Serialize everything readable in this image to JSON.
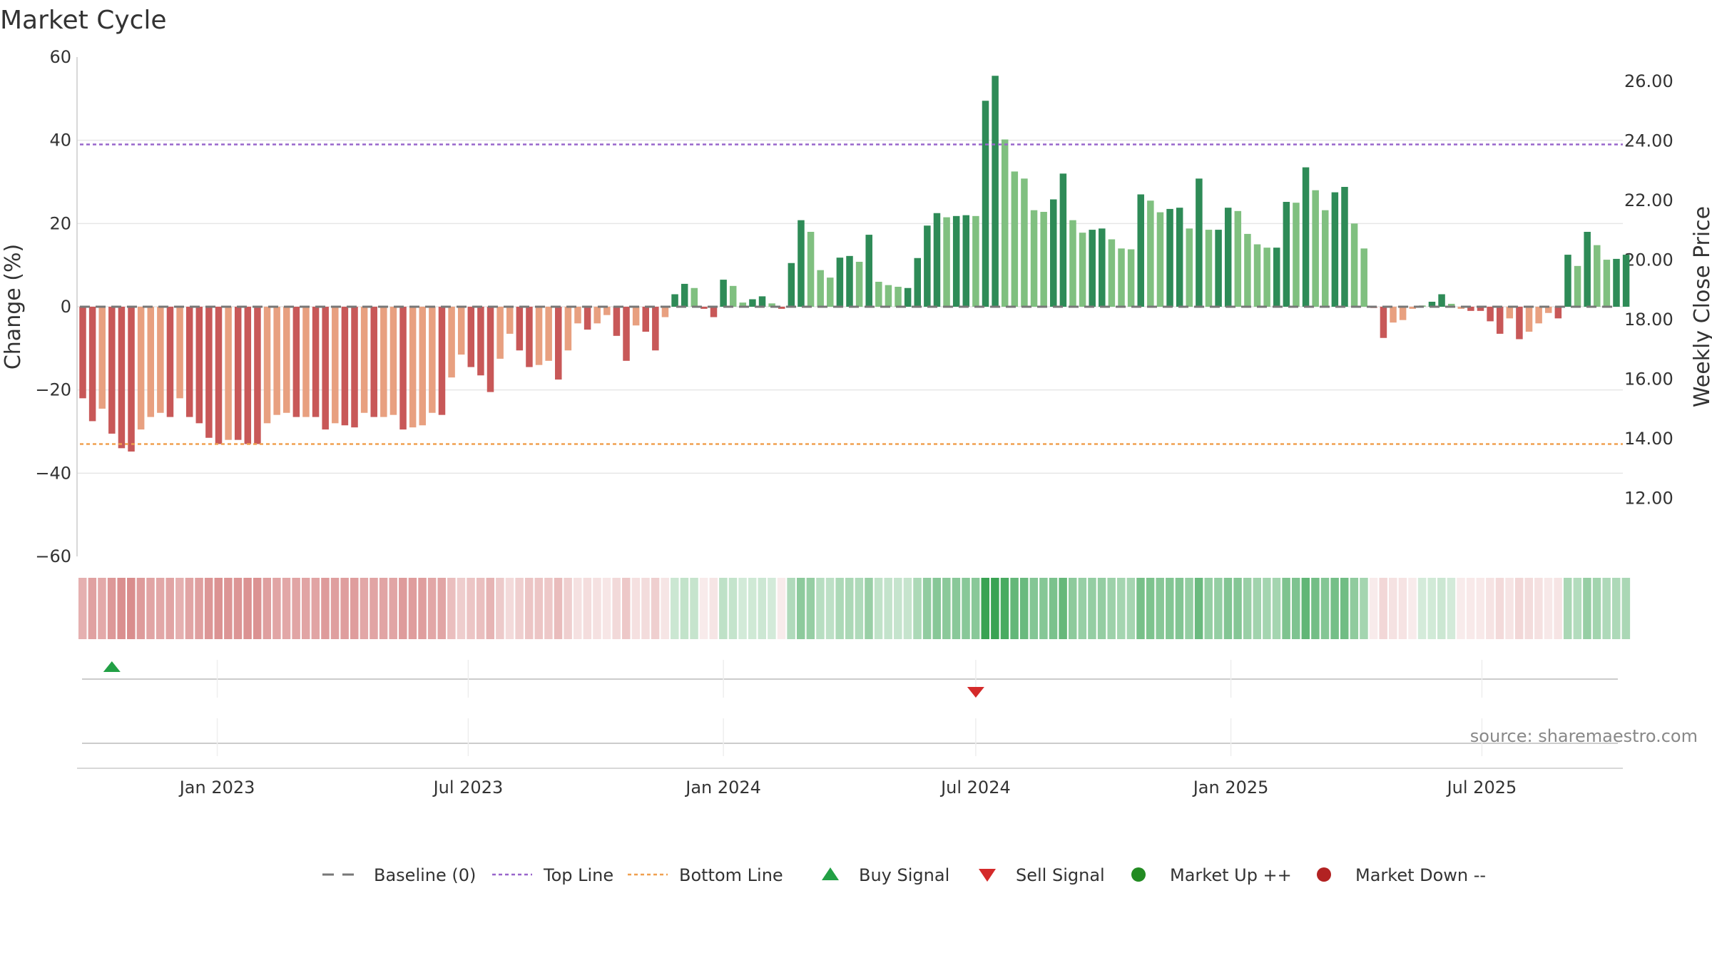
{
  "chart_data": {
    "type": "bar",
    "title": "Market Cycle",
    "ylabel": "Change (%)",
    "y2label": "Weekly Close Price",
    "ylim": [
      -60,
      60
    ],
    "y_ticks": [
      "60",
      "40",
      "20",
      "0",
      "−20",
      "−40",
      "−60"
    ],
    "y_tick_values": [
      60,
      40,
      20,
      0,
      -20,
      -40,
      -60
    ],
    "y2lim": [
      10,
      27
    ],
    "y2_ticks": [
      "26.00",
      "24.00",
      "22.00",
      "20.00",
      "18.00",
      "16.00",
      "14.00",
      "12.00"
    ],
    "y2_tick_values": [
      26,
      24,
      22,
      20,
      18,
      16,
      14,
      12
    ],
    "top_line": 39,
    "bottom_line": -33,
    "x_start": "2022-09-26",
    "x_end": "2025-10-06",
    "x_ticks": [
      "Jan 2023",
      "Jul 2023",
      "Jan 2024",
      "Jul 2024",
      "Jan 2025",
      "Jul 2025"
    ],
    "x_tick_dates": [
      "2023-01-01",
      "2023-07-01",
      "2024-01-01",
      "2024-07-01",
      "2025-01-01",
      "2025-07-01"
    ],
    "grid": true,
    "colors": {
      "down_strong": "#c85858",
      "down_light": "#e8a080",
      "up_strong": "#2e8b57",
      "up_light": "#80c080",
      "top_line": "#9966cc",
      "bottom_line": "#f0a050",
      "buy": "#22a045",
      "sell": "#d42a2a",
      "market_up": "#228b22",
      "market_down": "#b22222",
      "baseline": "#777777"
    },
    "bars": [
      {
        "date": "2022-09-26",
        "value": -22,
        "strong": true
      },
      {
        "date": "2022-10-03",
        "value": -27.5,
        "strong": true
      },
      {
        "date": "2022-10-10",
        "value": -24.5,
        "strong": false
      },
      {
        "date": "2022-10-17",
        "value": -30.5,
        "strong": true
      },
      {
        "date": "2022-10-24",
        "value": -34,
        "strong": true
      },
      {
        "date": "2022-10-31",
        "value": -34.8,
        "strong": true
      },
      {
        "date": "2022-11-07",
        "value": -29.5,
        "strong": false
      },
      {
        "date": "2022-11-14",
        "value": -26.5,
        "strong": false
      },
      {
        "date": "2022-11-21",
        "value": -25.5,
        "strong": false
      },
      {
        "date": "2022-11-28",
        "value": -26.5,
        "strong": true
      },
      {
        "date": "2022-12-05",
        "value": -22,
        "strong": false
      },
      {
        "date": "2022-12-12",
        "value": -26.5,
        "strong": true
      },
      {
        "date": "2022-12-19",
        "value": -28,
        "strong": true
      },
      {
        "date": "2022-12-26",
        "value": -31.5,
        "strong": true
      },
      {
        "date": "2023-01-02",
        "value": -33,
        "strong": true
      },
      {
        "date": "2023-01-09",
        "value": -32,
        "strong": false
      },
      {
        "date": "2023-01-16",
        "value": -32,
        "strong": true
      },
      {
        "date": "2023-01-23",
        "value": -33,
        "strong": true
      },
      {
        "date": "2023-01-30",
        "value": -33,
        "strong": true
      },
      {
        "date": "2023-02-06",
        "value": -28,
        "strong": false
      },
      {
        "date": "2023-02-13",
        "value": -26,
        "strong": false
      },
      {
        "date": "2023-02-20",
        "value": -25.5,
        "strong": false
      },
      {
        "date": "2023-02-27",
        "value": -26.5,
        "strong": true
      },
      {
        "date": "2023-03-06",
        "value": -26.5,
        "strong": false
      },
      {
        "date": "2023-03-13",
        "value": -26.5,
        "strong": true
      },
      {
        "date": "2023-03-20",
        "value": -29.5,
        "strong": true
      },
      {
        "date": "2023-03-27",
        "value": -28,
        "strong": false
      },
      {
        "date": "2023-04-03",
        "value": -28.5,
        "strong": true
      },
      {
        "date": "2023-04-10",
        "value": -29,
        "strong": true
      },
      {
        "date": "2023-04-17",
        "value": -25.5,
        "strong": false
      },
      {
        "date": "2023-04-24",
        "value": -26.5,
        "strong": true
      },
      {
        "date": "2023-05-01",
        "value": -26.5,
        "strong": false
      },
      {
        "date": "2023-05-08",
        "value": -26,
        "strong": false
      },
      {
        "date": "2023-05-15",
        "value": -29.5,
        "strong": true
      },
      {
        "date": "2023-05-22",
        "value": -29,
        "strong": false
      },
      {
        "date": "2023-05-29",
        "value": -28.5,
        "strong": false
      },
      {
        "date": "2023-06-05",
        "value": -25.5,
        "strong": false
      },
      {
        "date": "2023-06-12",
        "value": -26,
        "strong": true
      },
      {
        "date": "2023-06-19",
        "value": -17,
        "strong": false
      },
      {
        "date": "2023-06-26",
        "value": -11.5,
        "strong": false
      },
      {
        "date": "2023-07-03",
        "value": -14.5,
        "strong": true
      },
      {
        "date": "2023-07-10",
        "value": -16.5,
        "strong": true
      },
      {
        "date": "2023-07-17",
        "value": -20.5,
        "strong": true
      },
      {
        "date": "2023-07-24",
        "value": -12.5,
        "strong": false
      },
      {
        "date": "2023-07-31",
        "value": -6.5,
        "strong": false
      },
      {
        "date": "2023-08-07",
        "value": -10.5,
        "strong": true
      },
      {
        "date": "2023-08-14",
        "value": -14.5,
        "strong": true
      },
      {
        "date": "2023-08-21",
        "value": -14,
        "strong": false
      },
      {
        "date": "2023-08-28",
        "value": -13,
        "strong": false
      },
      {
        "date": "2023-09-04",
        "value": -17.5,
        "strong": true
      },
      {
        "date": "2023-09-11",
        "value": -10.5,
        "strong": false
      },
      {
        "date": "2023-09-18",
        "value": -4,
        "strong": false
      },
      {
        "date": "2023-09-25",
        "value": -5.5,
        "strong": true
      },
      {
        "date": "2023-10-02",
        "value": -4,
        "strong": false
      },
      {
        "date": "2023-10-09",
        "value": -2,
        "strong": false
      },
      {
        "date": "2023-10-16",
        "value": -7,
        "strong": true
      },
      {
        "date": "2023-10-23",
        "value": -13,
        "strong": true
      },
      {
        "date": "2023-10-30",
        "value": -4.5,
        "strong": false
      },
      {
        "date": "2023-11-06",
        "value": -6,
        "strong": true
      },
      {
        "date": "2023-11-13",
        "value": -10.5,
        "strong": true
      },
      {
        "date": "2023-11-20",
        "value": -2.5,
        "strong": false
      },
      {
        "date": "2023-11-27",
        "value": 3,
        "strong": true
      },
      {
        "date": "2023-12-04",
        "value": 5.5,
        "strong": true
      },
      {
        "date": "2023-12-11",
        "value": 4.5,
        "strong": false
      },
      {
        "date": "2023-12-18",
        "value": -0.5,
        "strong": true
      },
      {
        "date": "2023-12-25",
        "value": -2.5,
        "strong": true
      },
      {
        "date": "2024-01-01",
        "value": 6.5,
        "strong": true
      },
      {
        "date": "2024-01-08",
        "value": 5,
        "strong": false
      },
      {
        "date": "2024-01-15",
        "value": 1,
        "strong": false
      },
      {
        "date": "2024-01-22",
        "value": 1.8,
        "strong": true
      },
      {
        "date": "2024-01-29",
        "value": 2.5,
        "strong": true
      },
      {
        "date": "2024-02-05",
        "value": 0.8,
        "strong": false
      },
      {
        "date": "2024-02-12",
        "value": -0.5,
        "strong": true
      },
      {
        "date": "2024-02-19",
        "value": 10.5,
        "strong": true
      },
      {
        "date": "2024-02-26",
        "value": 20.8,
        "strong": true
      },
      {
        "date": "2024-03-04",
        "value": 18,
        "strong": false
      },
      {
        "date": "2024-03-11",
        "value": 8.8,
        "strong": false
      },
      {
        "date": "2024-03-18",
        "value": 7,
        "strong": false
      },
      {
        "date": "2024-03-25",
        "value": 11.8,
        "strong": true
      },
      {
        "date": "2024-04-01",
        "value": 12.2,
        "strong": true
      },
      {
        "date": "2024-04-08",
        "value": 10.8,
        "strong": false
      },
      {
        "date": "2024-04-15",
        "value": 17.3,
        "strong": true
      },
      {
        "date": "2024-04-22",
        "value": 6,
        "strong": false
      },
      {
        "date": "2024-04-29",
        "value": 5.2,
        "strong": false
      },
      {
        "date": "2024-05-06",
        "value": 4.8,
        "strong": false
      },
      {
        "date": "2024-05-13",
        "value": 4.5,
        "strong": true
      },
      {
        "date": "2024-05-20",
        "value": 11.7,
        "strong": true
      },
      {
        "date": "2024-05-27",
        "value": 19.5,
        "strong": true
      },
      {
        "date": "2024-06-03",
        "value": 22.5,
        "strong": true
      },
      {
        "date": "2024-06-10",
        "value": 21.5,
        "strong": false
      },
      {
        "date": "2024-06-17",
        "value": 21.8,
        "strong": true
      },
      {
        "date": "2024-06-24",
        "value": 22,
        "strong": true
      },
      {
        "date": "2024-07-01",
        "value": 21.8,
        "strong": false
      },
      {
        "date": "2024-07-08",
        "value": 49.5,
        "strong": true
      },
      {
        "date": "2024-07-15",
        "value": 55.5,
        "strong": true
      },
      {
        "date": "2024-07-22",
        "value": 40.2,
        "strong": false
      },
      {
        "date": "2024-07-29",
        "value": 32.5,
        "strong": false
      },
      {
        "date": "2024-08-05",
        "value": 30.8,
        "strong": false
      },
      {
        "date": "2024-08-12",
        "value": 23.2,
        "strong": false
      },
      {
        "date": "2024-08-19",
        "value": 22.8,
        "strong": false
      },
      {
        "date": "2024-08-26",
        "value": 25.8,
        "strong": true
      },
      {
        "date": "2024-09-02",
        "value": 32,
        "strong": true
      },
      {
        "date": "2024-09-09",
        "value": 20.8,
        "strong": false
      },
      {
        "date": "2024-09-16",
        "value": 17.8,
        "strong": false
      },
      {
        "date": "2024-09-23",
        "value": 18.5,
        "strong": true
      },
      {
        "date": "2024-09-30",
        "value": 18.8,
        "strong": true
      },
      {
        "date": "2024-10-07",
        "value": 16.2,
        "strong": false
      },
      {
        "date": "2024-10-14",
        "value": 14,
        "strong": false
      },
      {
        "date": "2024-10-21",
        "value": 13.8,
        "strong": false
      },
      {
        "date": "2024-10-28",
        "value": 27,
        "strong": true
      },
      {
        "date": "2024-11-04",
        "value": 25.5,
        "strong": false
      },
      {
        "date": "2024-11-11",
        "value": 22.7,
        "strong": false
      },
      {
        "date": "2024-11-18",
        "value": 23.5,
        "strong": true
      },
      {
        "date": "2024-11-25",
        "value": 23.8,
        "strong": true
      },
      {
        "date": "2024-12-02",
        "value": 18.8,
        "strong": false
      },
      {
        "date": "2024-12-09",
        "value": 30.8,
        "strong": true
      },
      {
        "date": "2024-12-16",
        "value": 18.5,
        "strong": false
      },
      {
        "date": "2024-12-23",
        "value": 18.5,
        "strong": true
      },
      {
        "date": "2024-12-30",
        "value": 23.8,
        "strong": true
      },
      {
        "date": "2025-01-06",
        "value": 23,
        "strong": false
      },
      {
        "date": "2025-01-13",
        "value": 17.5,
        "strong": false
      },
      {
        "date": "2025-01-20",
        "value": 15,
        "strong": false
      },
      {
        "date": "2025-01-27",
        "value": 14.2,
        "strong": false
      },
      {
        "date": "2025-02-03",
        "value": 14.2,
        "strong": true
      },
      {
        "date": "2025-02-10",
        "value": 25.2,
        "strong": true
      },
      {
        "date": "2025-02-17",
        "value": 25,
        "strong": false
      },
      {
        "date": "2025-02-24",
        "value": 33.5,
        "strong": true
      },
      {
        "date": "2025-03-03",
        "value": 28,
        "strong": false
      },
      {
        "date": "2025-03-10",
        "value": 23.2,
        "strong": false
      },
      {
        "date": "2025-03-17",
        "value": 27.5,
        "strong": true
      },
      {
        "date": "2025-03-24",
        "value": 28.8,
        "strong": true
      },
      {
        "date": "2025-03-31",
        "value": 20,
        "strong": false
      },
      {
        "date": "2025-04-07",
        "value": 14,
        "strong": false
      },
      {
        "date": "2025-04-14",
        "value": -0.3,
        "strong": true
      },
      {
        "date": "2025-04-21",
        "value": -7.5,
        "strong": true
      },
      {
        "date": "2025-04-28",
        "value": -3.8,
        "strong": false
      },
      {
        "date": "2025-05-05",
        "value": -3.2,
        "strong": false
      },
      {
        "date": "2025-05-12",
        "value": -0.5,
        "strong": false
      },
      {
        "date": "2025-05-19",
        "value": 0.3,
        "strong": false
      },
      {
        "date": "2025-05-26",
        "value": 1.2,
        "strong": true
      },
      {
        "date": "2025-06-02",
        "value": 3,
        "strong": true
      },
      {
        "date": "2025-06-09",
        "value": 0.7,
        "strong": false
      },
      {
        "date": "2025-06-16",
        "value": -0.5,
        "strong": false
      },
      {
        "date": "2025-06-23",
        "value": -1,
        "strong": true
      },
      {
        "date": "2025-06-30",
        "value": -1,
        "strong": true
      },
      {
        "date": "2025-07-07",
        "value": -3.5,
        "strong": true
      },
      {
        "date": "2025-07-14",
        "value": -6.5,
        "strong": true
      },
      {
        "date": "2025-07-21",
        "value": -2.8,
        "strong": false
      },
      {
        "date": "2025-07-28",
        "value": -7.8,
        "strong": true
      },
      {
        "date": "2025-08-04",
        "value": -6,
        "strong": false
      },
      {
        "date": "2025-08-11",
        "value": -4,
        "strong": false
      },
      {
        "date": "2025-08-18",
        "value": -1.5,
        "strong": false
      },
      {
        "date": "2025-08-25",
        "value": -2.8,
        "strong": true
      },
      {
        "date": "2025-09-01",
        "value": 12.5,
        "strong": true
      },
      {
        "date": "2025-09-08",
        "value": 9.8,
        "strong": false
      },
      {
        "date": "2025-09-15",
        "value": 18,
        "strong": true
      },
      {
        "date": "2025-09-22",
        "value": 14.8,
        "strong": false
      },
      {
        "date": "2025-09-29",
        "value": 11.3,
        "strong": false
      },
      {
        "date": "2025-10-06",
        "value": 11.5,
        "strong": true
      },
      {
        "date": "2025-10-13",
        "value": 12.5,
        "strong": true
      }
    ],
    "signals": [
      {
        "type": "buy",
        "date": "2022-10-17"
      },
      {
        "type": "sell",
        "date": "2024-07-01"
      }
    ],
    "legend": {
      "position": "bottom",
      "items": [
        {
          "label": "Baseline (0)",
          "marker": "dash",
          "color": "#777777"
        },
        {
          "label": "Top Line",
          "marker": "dotted",
          "color": "#9966cc"
        },
        {
          "label": "Bottom Line",
          "marker": "dotted",
          "color": "#f0a050"
        },
        {
          "label": "Buy Signal",
          "marker": "triangle-up",
          "color": "#22a045"
        },
        {
          "label": "Sell Signal",
          "marker": "triangle-down",
          "color": "#d42a2a"
        },
        {
          "label": "Market Up ++",
          "marker": "circle",
          "color": "#228b22"
        },
        {
          "label": "Market Down --",
          "marker": "circle",
          "color": "#b22222"
        }
      ]
    },
    "source": "source: sharemaestro.com"
  }
}
